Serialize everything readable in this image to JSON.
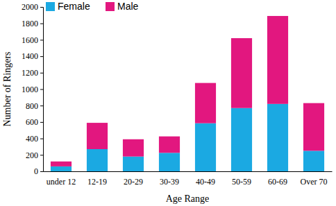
{
  "chart_data": {
    "type": "bar",
    "stacked": true,
    "legend": "upper left",
    "x_label": "Age Range",
    "y_label": "Number of Ringers",
    "categories": [
      "under 12",
      "12-19",
      "20-29",
      "30-39",
      "40-49",
      "50-59",
      "60-69",
      "Over 70"
    ],
    "series": [
      {
        "name": "Female",
        "color": "#1ba9e2",
        "values": [
          60,
          270,
          180,
          225,
          585,
          770,
          820,
          250
        ]
      },
      {
        "name": "Male",
        "color": "#e2177f",
        "values": [
          60,
          320,
          210,
          200,
          490,
          850,
          1070,
          580
        ]
      }
    ],
    "ylim": [
      0,
      2000
    ],
    "yticks": [
      0,
      200,
      400,
      600,
      800,
      1000,
      1200,
      1400,
      1600,
      1800,
      2000
    ]
  }
}
